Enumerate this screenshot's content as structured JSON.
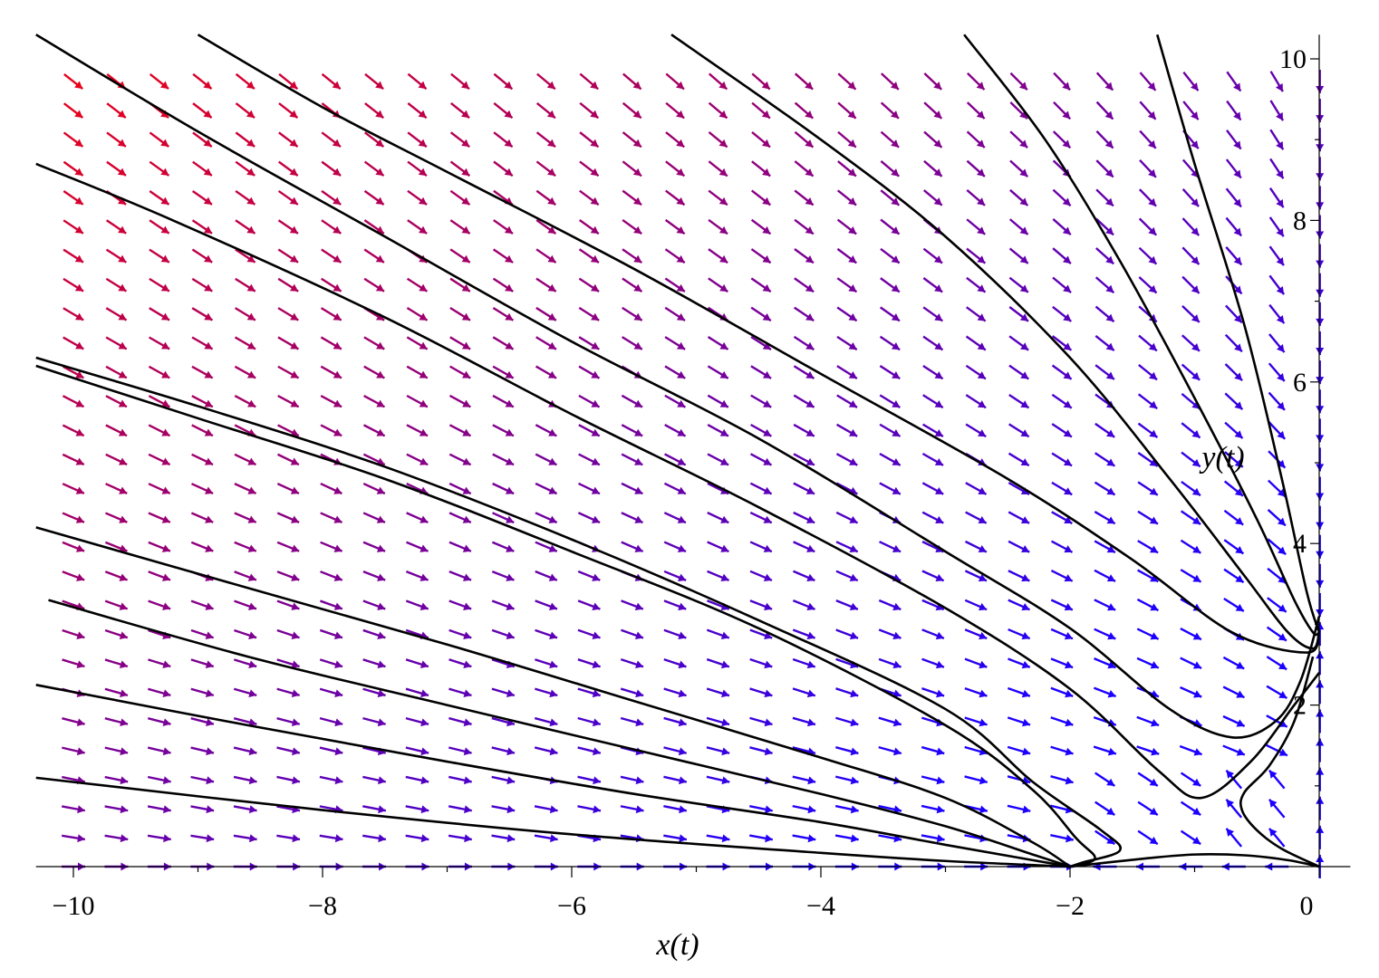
{
  "chart_data": {
    "type": "phase_portrait",
    "xlabel": "x(t)",
    "ylabel": "y(t)",
    "xlim": [
      -10.3,
      0.25
    ],
    "ylim": [
      0,
      10.3
    ],
    "xticks": [
      {
        "value": -10,
        "label": "−10"
      },
      {
        "value": -8,
        "label": "−8"
      },
      {
        "value": -6,
        "label": "−6"
      },
      {
        "value": -4,
        "label": "−4"
      },
      {
        "value": -2,
        "label": "−2"
      },
      {
        "value": 0,
        "label": "0"
      }
    ],
    "yticks": [
      {
        "value": 2,
        "label": "2"
      },
      {
        "value": 4,
        "label": "4"
      },
      {
        "value": 6,
        "label": "6"
      },
      {
        "value": 8,
        "label": "8"
      },
      {
        "value": 10,
        "label": "10"
      }
    ],
    "arrow_field": {
      "x_start": -10.0,
      "x_step": 0.345,
      "x_count": 30,
      "y_start": 0.0,
      "y_step": 0.36,
      "y_count": 28,
      "color_low": "#1c00ff",
      "color_high": "#ff0000"
    },
    "trajectories": [
      {
        "points": [
          [
            -10.3,
            10.3
          ],
          [
            -9.0,
            9.1
          ],
          [
            -7.5,
            7.8
          ],
          [
            -6.0,
            6.5
          ],
          [
            -4.5,
            5.3
          ],
          [
            -3.0,
            3.9
          ],
          [
            -2.0,
            2.95
          ],
          [
            -1.2,
            1.95
          ],
          [
            -0.7,
            1.6
          ],
          [
            -0.35,
            1.8
          ],
          [
            -0.15,
            2.3
          ],
          [
            0,
            3.1
          ]
        ]
      },
      {
        "points": [
          [
            -10.3,
            8.7
          ],
          [
            -9.2,
            8.0
          ],
          [
            -7.5,
            6.8
          ],
          [
            -6.0,
            5.6
          ],
          [
            -4.5,
            4.45
          ],
          [
            -3.0,
            3.2
          ],
          [
            -2.0,
            2.2
          ],
          [
            -1.3,
            1.2
          ],
          [
            -0.95,
            0.85
          ],
          [
            -0.55,
            1.3
          ],
          [
            -0.2,
            2.0
          ],
          [
            0,
            2.4
          ]
        ]
      },
      {
        "points": [
          [
            -10.3,
            6.3
          ],
          [
            -9.0,
            5.7
          ],
          [
            -7.5,
            4.95
          ],
          [
            -6.0,
            4.05
          ],
          [
            -4.5,
            3.05
          ],
          [
            -3.0,
            1.95
          ],
          [
            -2.3,
            1.05
          ],
          [
            -1.75,
            0.45
          ],
          [
            -1.6,
            0.2
          ],
          [
            -1.9,
            0.05
          ],
          [
            -2.0,
            0
          ]
        ]
      },
      {
        "points": [
          [
            -10.3,
            6.2
          ],
          [
            -9.0,
            5.55
          ],
          [
            -7.5,
            4.8
          ],
          [
            -6.0,
            3.9
          ],
          [
            -4.5,
            2.95
          ],
          [
            -3.0,
            1.75
          ],
          [
            -2.3,
            0.95
          ],
          [
            -1.95,
            0.35
          ],
          [
            -1.8,
            0.1
          ],
          [
            -2.0,
            0
          ]
        ]
      },
      {
        "points": [
          [
            -10.3,
            4.2
          ],
          [
            -8.6,
            3.45
          ],
          [
            -7.0,
            2.75
          ],
          [
            -5.5,
            2.05
          ],
          [
            -4.0,
            1.35
          ],
          [
            -3.0,
            0.85
          ],
          [
            -2.3,
            0.3
          ],
          [
            -2.0,
            0
          ]
        ]
      },
      {
        "points": [
          [
            -10.2,
            3.3
          ],
          [
            -8.6,
            2.6
          ],
          [
            -7.0,
            2.0
          ],
          [
            -5.5,
            1.45
          ],
          [
            -4.0,
            0.9
          ],
          [
            -3.0,
            0.5
          ],
          [
            -2.3,
            0.15
          ],
          [
            -2.0,
            0
          ]
        ]
      },
      {
        "points": [
          [
            -10.3,
            2.25
          ],
          [
            -8.6,
            1.75
          ],
          [
            -7.0,
            1.3
          ],
          [
            -5.5,
            0.9
          ],
          [
            -4.0,
            0.55
          ],
          [
            -3.0,
            0.27
          ],
          [
            -2.3,
            0.08
          ],
          [
            -2.0,
            0
          ]
        ]
      },
      {
        "points": [
          [
            -10.3,
            1.1
          ],
          [
            -8.0,
            0.7
          ],
          [
            -6.0,
            0.4
          ],
          [
            -4.0,
            0.17
          ],
          [
            -3.0,
            0.07
          ],
          [
            -2.0,
            0
          ]
        ]
      },
      {
        "points": [
          [
            -2.0,
            0
          ],
          [
            -1.4,
            0.1
          ],
          [
            -1.0,
            0.15
          ],
          [
            -0.6,
            0.14
          ],
          [
            -0.25,
            0.08
          ],
          [
            0,
            0
          ]
        ]
      },
      {
        "points": [
          [
            -0.05,
            2.6
          ],
          [
            -0.2,
            1.8
          ],
          [
            -0.4,
            1.25
          ],
          [
            -0.6,
            0.92
          ],
          [
            -0.62,
            0.7
          ],
          [
            -0.5,
            0.45
          ],
          [
            -0.3,
            0.22
          ],
          [
            0,
            0
          ]
        ]
      },
      {
        "points": [
          [
            -9.0,
            10.3
          ],
          [
            -8.0,
            9.4
          ],
          [
            -7.0,
            8.6
          ],
          [
            -5.5,
            7.4
          ],
          [
            -4.0,
            6.1
          ],
          [
            -2.5,
            4.8
          ],
          [
            -1.5,
            3.8
          ],
          [
            -0.7,
            2.9
          ],
          [
            -0.1,
            2.65
          ],
          [
            0,
            2.9
          ]
        ]
      },
      {
        "points": [
          [
            -5.2,
            10.3
          ],
          [
            -4.0,
            9.0
          ],
          [
            -3.0,
            7.8
          ],
          [
            -2.0,
            6.3
          ],
          [
            -1.2,
            4.8
          ],
          [
            -0.6,
            3.6
          ],
          [
            -0.25,
            2.9
          ],
          [
            -0.05,
            2.7
          ],
          [
            0,
            2.9
          ]
        ]
      },
      {
        "points": [
          [
            -2.85,
            10.3
          ],
          [
            -2.2,
            9.0
          ],
          [
            -1.6,
            7.5
          ],
          [
            -1.0,
            5.8
          ],
          [
            -0.5,
            4.3
          ],
          [
            -0.2,
            3.3
          ],
          [
            -0.05,
            2.9
          ],
          [
            0,
            2.9
          ]
        ]
      },
      {
        "points": [
          [
            -1.3,
            10.3
          ],
          [
            -1.0,
            8.7
          ],
          [
            -0.6,
            6.7
          ],
          [
            -0.3,
            4.8
          ],
          [
            -0.1,
            3.4
          ],
          [
            0,
            2.9
          ]
        ]
      }
    ]
  }
}
